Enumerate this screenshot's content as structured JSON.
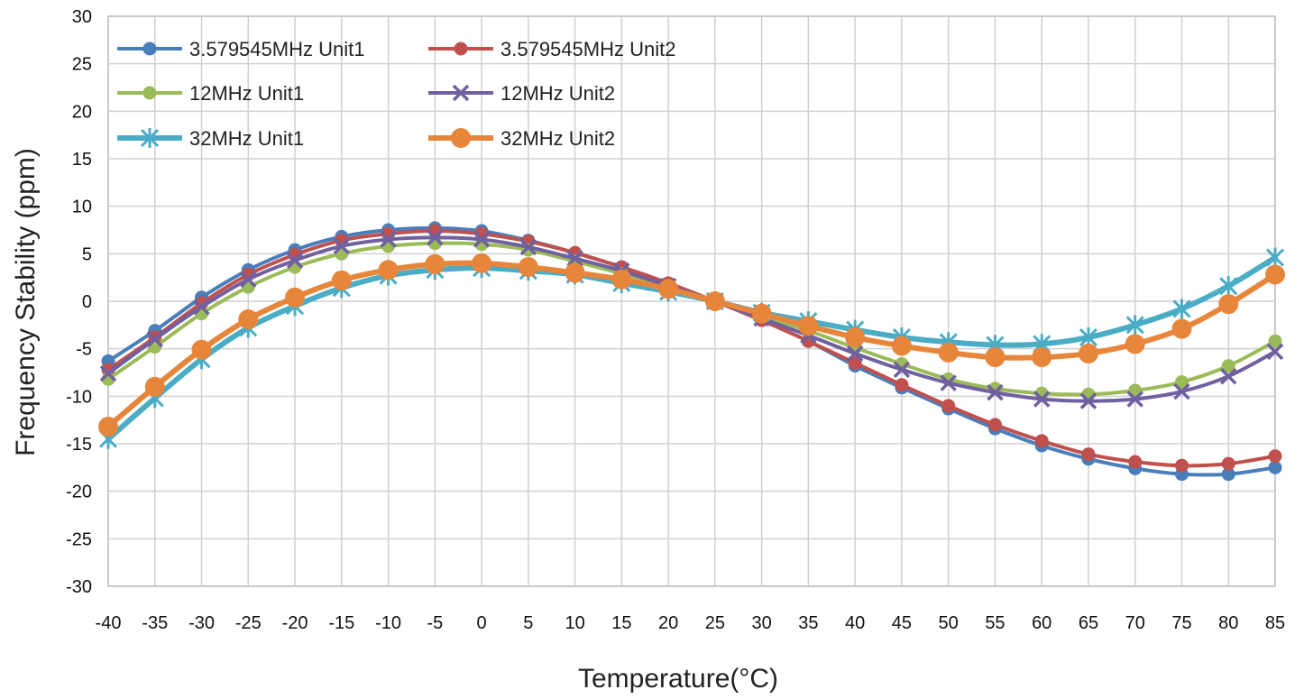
{
  "chart_data": {
    "type": "line",
    "xlabel": "Temperature(°C)",
    "ylabel": "Frequency Stability (ppm)",
    "x": [
      -40,
      -35,
      -30,
      -25,
      -20,
      -15,
      -10,
      -5,
      0,
      5,
      10,
      15,
      20,
      25,
      30,
      35,
      40,
      45,
      50,
      55,
      60,
      65,
      70,
      75,
      80,
      85
    ],
    "xlim": [
      -40,
      85
    ],
    "ylim": [
      -30,
      30
    ],
    "yticks": [
      -30,
      -25,
      -20,
      -15,
      -10,
      -5,
      0,
      5,
      10,
      15,
      20,
      25,
      30
    ],
    "grid": true,
    "legend_position": "top-left",
    "series": [
      {
        "name": "3.579545MHz Unit1",
        "color": "#4a7ebb",
        "marker": "circle",
        "line_width": 4,
        "values": [
          -6.3,
          -3.1,
          0.4,
          3.3,
          5.4,
          6.8,
          7.5,
          7.7,
          7.4,
          6.4,
          5.1,
          3.6,
          1.9,
          0,
          -2,
          -4.2,
          -6.8,
          -9.1,
          -11.3,
          -13.4,
          -15.2,
          -16.6,
          -17.6,
          -18.2,
          -18.2,
          -17.5
        ]
      },
      {
        "name": "3.579545MHz Unit2",
        "color": "#c0504d",
        "marker": "circle",
        "line_width": 4,
        "values": [
          -7.2,
          -3.8,
          -0.2,
          2.8,
          4.9,
          6.4,
          7.1,
          7.4,
          7.1,
          6.3,
          5.1,
          3.6,
          1.9,
          0,
          -2,
          -4.2,
          -6.5,
          -8.8,
          -11,
          -13,
          -14.7,
          -16.1,
          -16.9,
          -17.3,
          -17.1,
          -16.3
        ]
      },
      {
        "name": "12MHz Unit1",
        "color": "#9bbb59",
        "marker": "circle",
        "line_width": 4,
        "values": [
          -8.2,
          -4.8,
          -1.3,
          1.5,
          3.6,
          5,
          5.8,
          6.1,
          6,
          5.4,
          4.2,
          2.9,
          1.5,
          0,
          -1.6,
          -3.1,
          -4.9,
          -6.6,
          -8.2,
          -9.2,
          -9.7,
          -9.8,
          -9.4,
          -8.5,
          -6.8,
          -4.2
        ]
      },
      {
        "name": "12MHz Unit2",
        "color": "#7060a0",
        "marker": "x",
        "line_width": 4,
        "values": [
          -7.6,
          -4,
          -0.6,
          2.3,
          4.3,
          5.8,
          6.5,
          6.7,
          6.5,
          5.7,
          4.5,
          3.2,
          1.6,
          0,
          -1.8,
          -3.6,
          -5.5,
          -7.2,
          -8.6,
          -9.6,
          -10.3,
          -10.5,
          -10.3,
          -9.5,
          -7.9,
          -5.3
        ]
      },
      {
        "name": "32MHz Unit1",
        "color": "#4bacc6",
        "marker": "asterisk",
        "line_width": 6,
        "values": [
          -14.5,
          -10.2,
          -6.1,
          -2.8,
          -0.5,
          1.4,
          2.7,
          3.3,
          3.5,
          3.2,
          2.8,
          1.9,
          1,
          0,
          -1.2,
          -2.1,
          -3,
          -3.8,
          -4.3,
          -4.6,
          -4.5,
          -3.8,
          -2.5,
          -0.8,
          1.6,
          4.6
        ]
      },
      {
        "name": "32MHz Unit2",
        "color": "#e7863b",
        "marker": "circle-large",
        "line_width": 6,
        "values": [
          -13.2,
          -9,
          -5.1,
          -1.9,
          0.4,
          2.2,
          3.3,
          3.9,
          4,
          3.6,
          3,
          2.3,
          1.3,
          0,
          -1.3,
          -2.6,
          -3.8,
          -4.7,
          -5.4,
          -5.9,
          -5.9,
          -5.5,
          -4.5,
          -2.9,
          -0.3,
          2.8
        ]
      }
    ]
  }
}
